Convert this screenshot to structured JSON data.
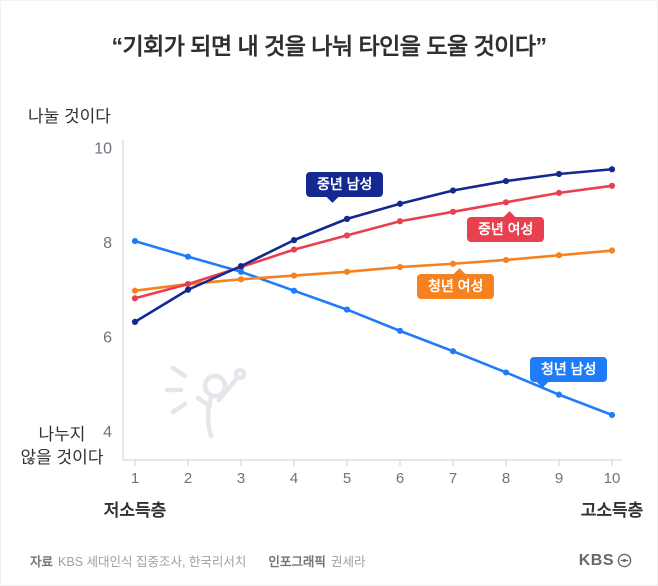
{
  "title": "“기회가 되면 내 것을 나눠 타인을 도울 것이다”",
  "chart_data": {
    "type": "line",
    "x": [
      1,
      2,
      3,
      4,
      5,
      6,
      7,
      8,
      9,
      10
    ],
    "series": [
      {
        "name": "중년 남성",
        "color": "#14298f",
        "values": [
          6.32,
          7.0,
          7.5,
          8.05,
          8.5,
          8.82,
          9.1,
          9.3,
          9.45,
          9.55
        ]
      },
      {
        "name": "중년 여성",
        "color": "#e8404f",
        "values": [
          6.82,
          7.12,
          7.48,
          7.85,
          8.15,
          8.45,
          8.65,
          8.85,
          9.05,
          9.2
        ]
      },
      {
        "name": "청년 여성",
        "color": "#f5821f",
        "values": [
          6.98,
          7.12,
          7.22,
          7.3,
          7.38,
          7.48,
          7.55,
          7.63,
          7.73,
          7.83
        ]
      },
      {
        "name": "청년 남성",
        "color": "#1f7cf9",
        "values": [
          8.03,
          7.7,
          7.38,
          6.98,
          6.58,
          6.13,
          5.7,
          5.25,
          4.78,
          4.35
        ]
      }
    ],
    "ylim": [
      4,
      10
    ],
    "yticks": [
      4,
      6,
      8,
      10
    ],
    "grid": "off",
    "y_axis_top_label": "나눌 것이다",
    "y_axis_bottom_label": "나누지\n않을 것이다",
    "x_left_label": "저소득층",
    "x_right_label": "고소득층"
  },
  "footer": {
    "source_label": "자료",
    "source_text": "KBS 세대인식 집중조사, 한국리서치",
    "infographic_label": "인포그래픽",
    "infographic_text": "권세라",
    "logo_text": "KBS"
  }
}
